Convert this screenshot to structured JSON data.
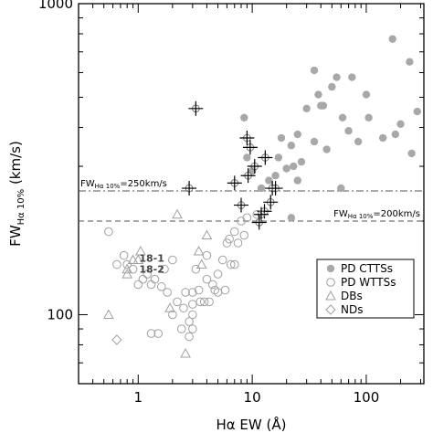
{
  "chart_data": {
    "type": "scatter",
    "title": "",
    "xlabel": "Hα EW (Å)",
    "ylabel_main": "FW",
    "ylabel_sub": "Hα 10%",
    "ylabel_units": " (km/s)",
    "xscale": "log",
    "yscale": "log",
    "xlim": [
      0.3,
      320
    ],
    "ylim": [
      60,
      1000
    ],
    "x_ticks": [
      {
        "value": 1,
        "label": "1"
      },
      {
        "value": 10,
        "label": "10"
      },
      {
        "value": 100,
        "label": "100"
      }
    ],
    "y_ticks": [
      {
        "value": 100,
        "label": "100"
      },
      {
        "value": 1000,
        "label": "1000"
      }
    ],
    "grid": false,
    "legend_position": "lower-right",
    "colors": {
      "cttss": "#a8a8a8",
      "wttss": "#a0a0a0",
      "dbs": "#a0a0a0",
      "nds": "#a0a0a0",
      "crosses": "#000000",
      "lines": "#555555"
    },
    "reference_lines": [
      {
        "y": 250,
        "style": "dashdot",
        "label_main": "FW",
        "label_sub": "Hα 10%",
        "label_rest": "=250km/s",
        "label_side": "left"
      },
      {
        "y": 200,
        "style": "dashed",
        "label_main": "FW",
        "label_sub": "Hα 10%",
        "label_rest": "=200km/s",
        "label_side": "right"
      }
    ],
    "point_labels": [
      {
        "text": "18-1",
        "x": 1.02,
        "y": 152
      },
      {
        "text": "18-2",
        "x": 1.02,
        "y": 140
      }
    ],
    "series": [
      {
        "name": "PD CTTSs",
        "marker": "filled-circle",
        "points": [
          [
            240,
            650
          ],
          [
            170,
            770
          ],
          [
            140,
            370
          ],
          [
            105,
            430
          ],
          [
            100,
            510
          ],
          [
            85,
            360
          ],
          [
            75,
            580
          ],
          [
            62,
            430
          ],
          [
            55,
            580
          ],
          [
            50,
            540
          ],
          [
            45,
            340
          ],
          [
            42,
            470
          ],
          [
            38,
            510
          ],
          [
            35,
            610
          ],
          [
            30,
            460
          ],
          [
            25,
            380
          ],
          [
            22,
            350
          ],
          [
            20,
            295
          ],
          [
            18,
            370
          ],
          [
            17,
            320
          ],
          [
            16,
            280
          ],
          [
            14,
            270
          ],
          [
            12,
            255
          ],
          [
            10,
            290
          ],
          [
            9,
            320
          ],
          [
            8.5,
            430
          ],
          [
            25,
            270
          ],
          [
            23,
            300
          ],
          [
            27,
            310
          ],
          [
            70,
            390
          ],
          [
            200,
            410
          ],
          [
            180,
            380
          ],
          [
            280,
            450
          ],
          [
            250,
            330
          ],
          [
            60,
            255
          ],
          [
            35,
            360
          ],
          [
            40,
            470
          ],
          [
            22,
            205
          ]
        ]
      },
      {
        "name": "PD WTTSs",
        "marker": "open-circle",
        "points": [
          [
            11,
            210
          ],
          [
            9,
            205
          ],
          [
            8,
            200
          ],
          [
            7,
            185
          ],
          [
            6,
            170
          ],
          [
            5.5,
            150
          ],
          [
            5,
            135
          ],
          [
            4.5,
            125
          ],
          [
            4,
            130
          ],
          [
            3.5,
            110
          ],
          [
            3,
            100
          ],
          [
            2.8,
            95
          ],
          [
            2.5,
            105
          ],
          [
            2.2,
            110
          ],
          [
            2,
            100
          ],
          [
            1.8,
            118
          ],
          [
            1.6,
            123
          ],
          [
            1.4,
            130
          ],
          [
            1.3,
            125
          ],
          [
            1.2,
            135
          ],
          [
            1.1,
            130
          ],
          [
            1,
            125
          ],
          [
            0.9,
            140
          ],
          [
            0.8,
            145
          ],
          [
            0.75,
            155
          ],
          [
            0.65,
            145
          ],
          [
            0.55,
            185
          ],
          [
            2,
            150
          ],
          [
            1.7,
            140
          ],
          [
            3.2,
            140
          ],
          [
            4,
            155
          ],
          [
            5.8,
            120
          ],
          [
            4.7,
            120
          ],
          [
            6.5,
            145
          ],
          [
            7,
            145
          ],
          [
            2.6,
            118
          ],
          [
            3,
            118
          ],
          [
            3.4,
            120
          ],
          [
            3.8,
            110
          ],
          [
            4.2,
            110
          ],
          [
            5,
            118
          ],
          [
            2.4,
            90
          ],
          [
            3,
            90
          ],
          [
            1.5,
            87
          ],
          [
            1.3,
            87
          ],
          [
            2.8,
            85
          ],
          [
            8.5,
            180
          ],
          [
            7.5,
            170
          ],
          [
            6.3,
            175
          ],
          [
            3,
            108
          ]
        ]
      },
      {
        "name": "DBs",
        "marker": "open-triangle",
        "points": [
          [
            4,
            180
          ],
          [
            2.2,
            210
          ],
          [
            1.05,
            160
          ],
          [
            0.9,
            150
          ],
          [
            0.8,
            140
          ],
          [
            1,
            150
          ],
          [
            1.9,
            105
          ],
          [
            2.6,
            75
          ],
          [
            0.55,
            100
          ],
          [
            0.8,
            135
          ],
          [
            3.6,
            145
          ],
          [
            3.4,
            160
          ]
        ]
      },
      {
        "name": "NDs",
        "marker": "open-diamond",
        "points": [
          [
            0.65,
            83
          ]
        ]
      },
      {
        "name": "",
        "marker": "plus-circle",
        "points": [
          [
            3.2,
            460
          ],
          [
            9,
            370
          ],
          [
            9.6,
            345
          ],
          [
            13,
            320
          ],
          [
            10.5,
            300
          ],
          [
            9.2,
            280
          ],
          [
            7,
            265
          ],
          [
            2.8,
            255
          ],
          [
            15,
            255
          ],
          [
            16,
            255
          ],
          [
            14.5,
            230
          ],
          [
            12.8,
            215
          ],
          [
            12,
            210
          ],
          [
            8,
            225
          ],
          [
            11.5,
            198
          ]
        ]
      }
    ]
  }
}
